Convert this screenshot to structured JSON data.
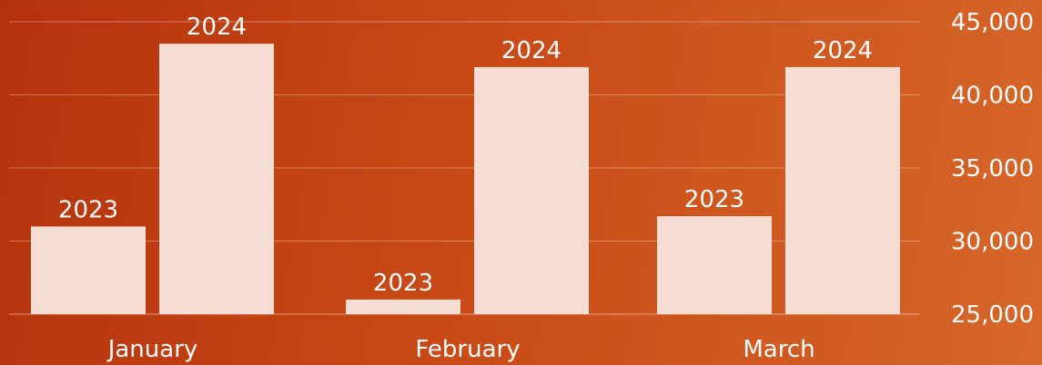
{
  "chart_data": {
    "type": "bar",
    "categories": [
      "January",
      "February",
      "March"
    ],
    "series": [
      {
        "label": "2023",
        "values": [
          31000,
          26000,
          31700
        ]
      },
      {
        "label": "2024",
        "values": [
          43500,
          41900,
          41900
        ]
      }
    ],
    "yticks": [
      "25,000",
      "30,000",
      "35,000",
      "40,000",
      "45,000"
    ],
    "ytick_values": [
      25000,
      30000,
      35000,
      40000,
      45000
    ],
    "ylim": [
      25000,
      45000
    ],
    "y_axis_position": "right",
    "grid": true,
    "colors": {
      "bar": "#f5ddd3",
      "background_start": "#b5330c",
      "background_end": "#d6672a"
    }
  }
}
